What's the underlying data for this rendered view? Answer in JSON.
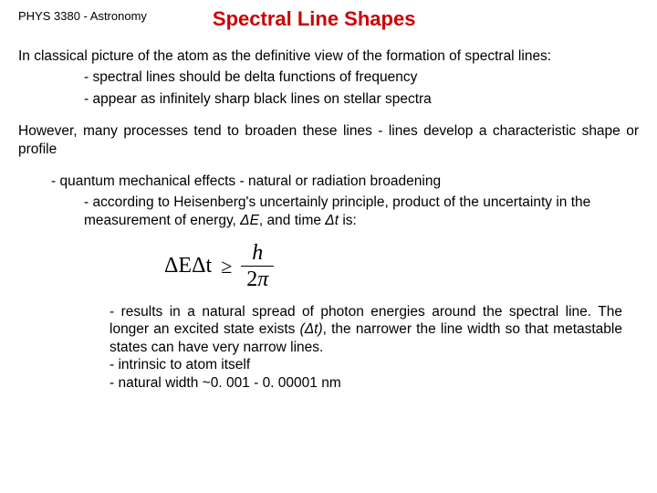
{
  "header": {
    "course": "PHYS 3380 - Astronomy",
    "title": "Spectral Line Shapes",
    "title_color": "#cc0000"
  },
  "p1": "In classical picture of the atom as the definitive view of the formation of spectral lines:",
  "p1_b1": "- spectral lines should be delta functions of frequency",
  "p1_b2": "- appear as infinitely sharp black lines on stellar spectra",
  "p2": "However, many processes tend to broaden these lines - lines develop a characteristic shape or profile",
  "p3": "- quantum mechanical effects - natural or radiation broadening",
  "p3_sub_a": "- according to Heisenberg's uncertainly principle, product of the uncertainty in the measurement of energy, ",
  "p3_sub_dE": "ΔE",
  "p3_sub_mid": ", and time ",
  "p3_sub_dt": "Δt",
  "p3_sub_end": " is:",
  "formula": {
    "lhs_dE": "ΔE",
    "lhs_dt": "Δt",
    "ge": "≥",
    "num": "h",
    "den_2": "2",
    "den_pi": "π"
  },
  "p4_a": "- results in a natural spread of photon energies around the spectral line. The longer an excited state exists ",
  "p4_dt": "(Δt)",
  "p4_b": ", the narrower the line width so that metastable states can have very narrow lines.",
  "p5": "- intrinsic to atom itself",
  "p6": "- natural width ~0. 001 - 0. 00001 nm"
}
